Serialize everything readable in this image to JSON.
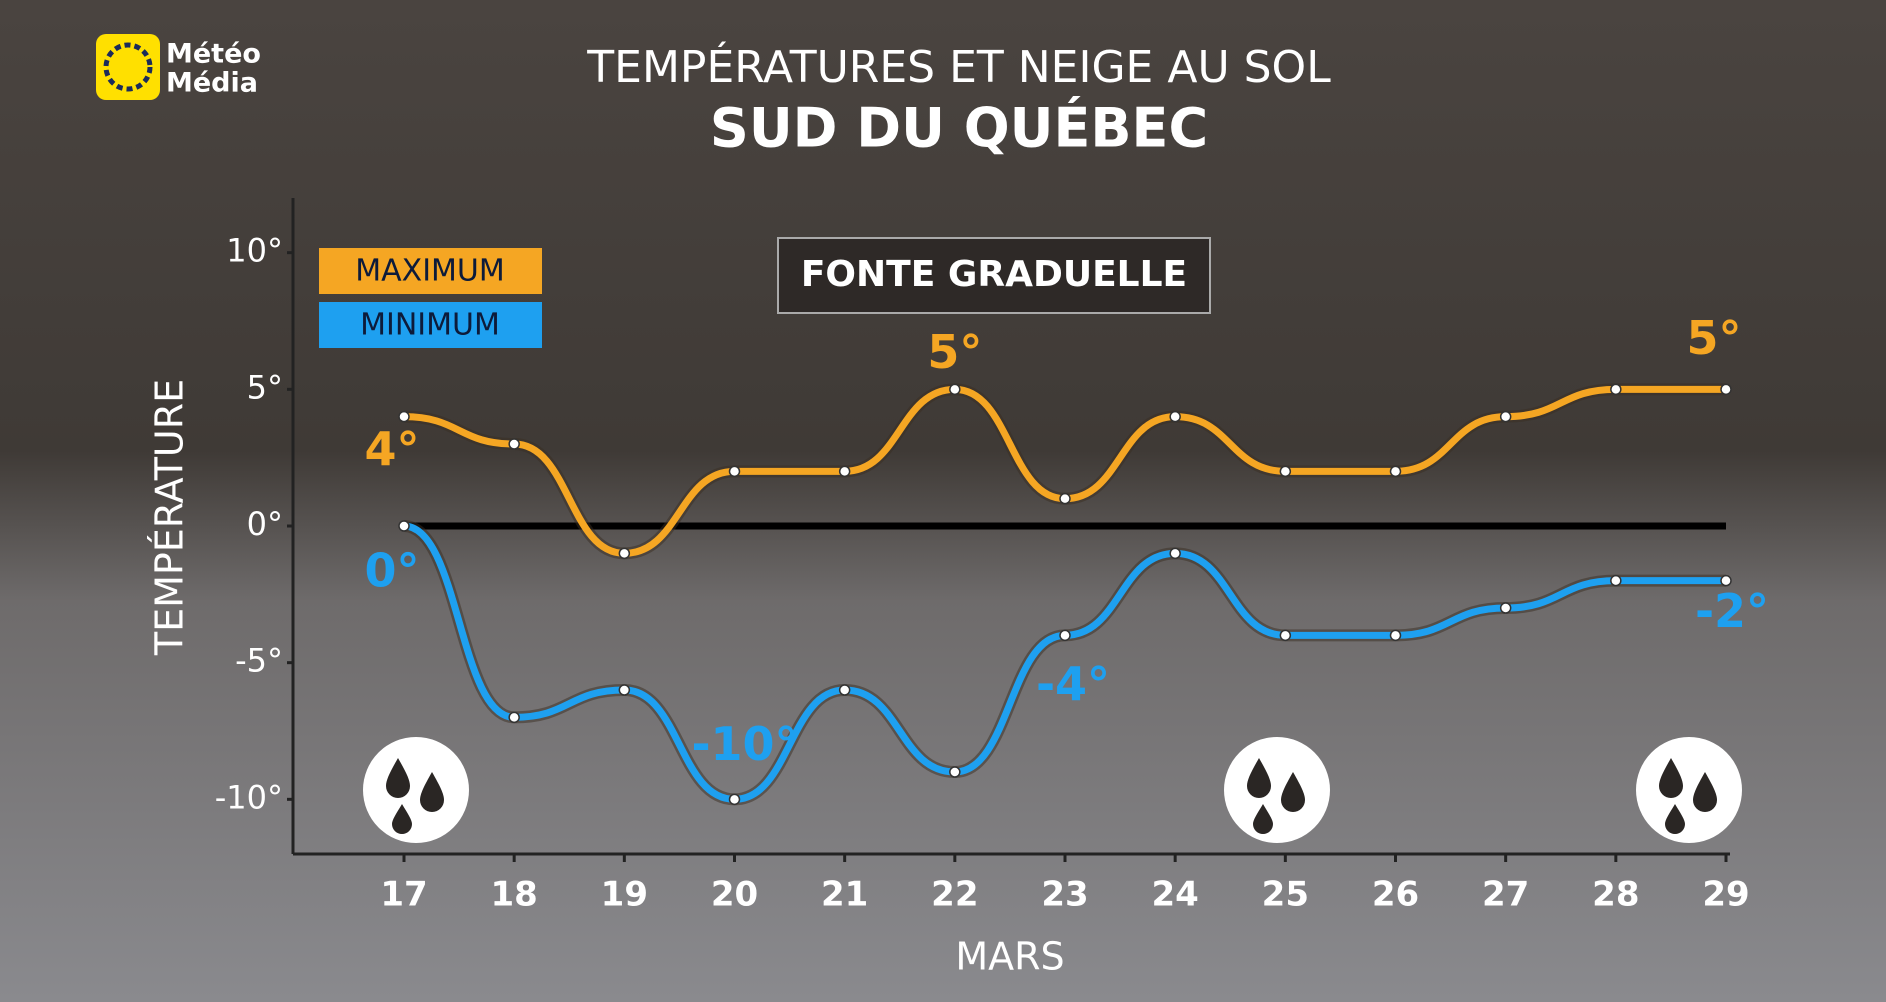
{
  "logo": {
    "lines": [
      "Météo",
      "Média"
    ]
  },
  "chart_data": {
    "type": "line",
    "title": "TEMPÉRATURES ET NEIGE AU SOL",
    "subtitle": "SUD DU QUÉBEC",
    "annotation": "FONTE GRADUELLE",
    "x_label": "MARS",
    "y_label": "TEMPÉRATURE",
    "categories": [
      "17",
      "18",
      "19",
      "20",
      "21",
      "22",
      "23",
      "24",
      "25",
      "26",
      "27",
      "28",
      "29"
    ],
    "series": [
      {
        "name": "MAXIMUM",
        "color": "#f5a623",
        "values": [
          4,
          3,
          -1,
          2,
          2,
          5,
          1,
          4,
          2,
          2,
          4,
          5,
          5
        ],
        "value_labels": [
          "4°",
          null,
          null,
          null,
          null,
          "5°",
          null,
          null,
          null,
          null,
          null,
          null,
          "5°"
        ]
      },
      {
        "name": "MINIMUM",
        "color": "#1ea0f0",
        "values": [
          0,
          -7,
          -6,
          -10,
          -6,
          -9,
          -4,
          -1,
          -4,
          -4,
          -3,
          -2,
          -2
        ],
        "value_labels": [
          "0°",
          null,
          null,
          "-10°",
          null,
          null,
          "-4°",
          null,
          null,
          null,
          null,
          null,
          "-2°"
        ]
      }
    ],
    "ylim": [
      -12,
      12
    ],
    "yticks": [
      {
        "value": -10,
        "label": "-10°"
      },
      {
        "value": -5,
        "label": "-5°"
      },
      {
        "value": 0,
        "label": "0°"
      },
      {
        "value": 5,
        "label": "5°"
      },
      {
        "value": 10,
        "label": "10°"
      }
    ],
    "zero_line": true,
    "legend": "top-left"
  }
}
